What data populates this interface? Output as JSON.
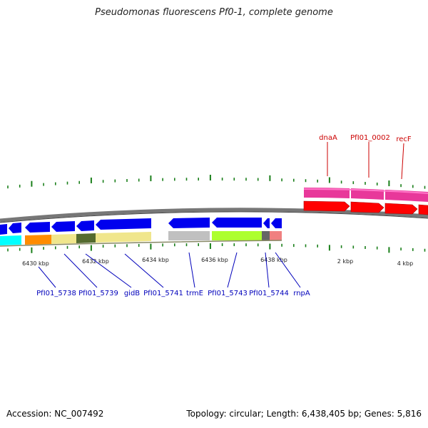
{
  "title": "Pseudomonas fluorescens Pf0-1, complete genome",
  "footer": {
    "accession": "Accession: NC_007492",
    "summary": "Topology: circular; Length: 6,438,405 bp; Genes: 5,816"
  },
  "colors": {
    "backbone": "#777777",
    "tick": "#1a7f1a",
    "gene_forward": "#ff0000",
    "gene_reverse": "#0000ee",
    "label_forward": "#cc0000",
    "label_reverse": "#0000bb"
  },
  "axis_labels": [
    "6430 kbp",
    "6432 kbp",
    "6434 kbp",
    "6436 kbp",
    "6438 kbp",
    "2 kbp",
    "4 kbp"
  ],
  "gene_labels": {
    "forward": [
      "dnaA",
      "PfI01_0002",
      "recF"
    ],
    "reverse": [
      "PfI01_5738",
      "PfI01_5739",
      "gidB",
      "PfI01_5741",
      "trmE",
      "PfI01_5743",
      "PfI01_5744",
      "rnpA"
    ]
  }
}
